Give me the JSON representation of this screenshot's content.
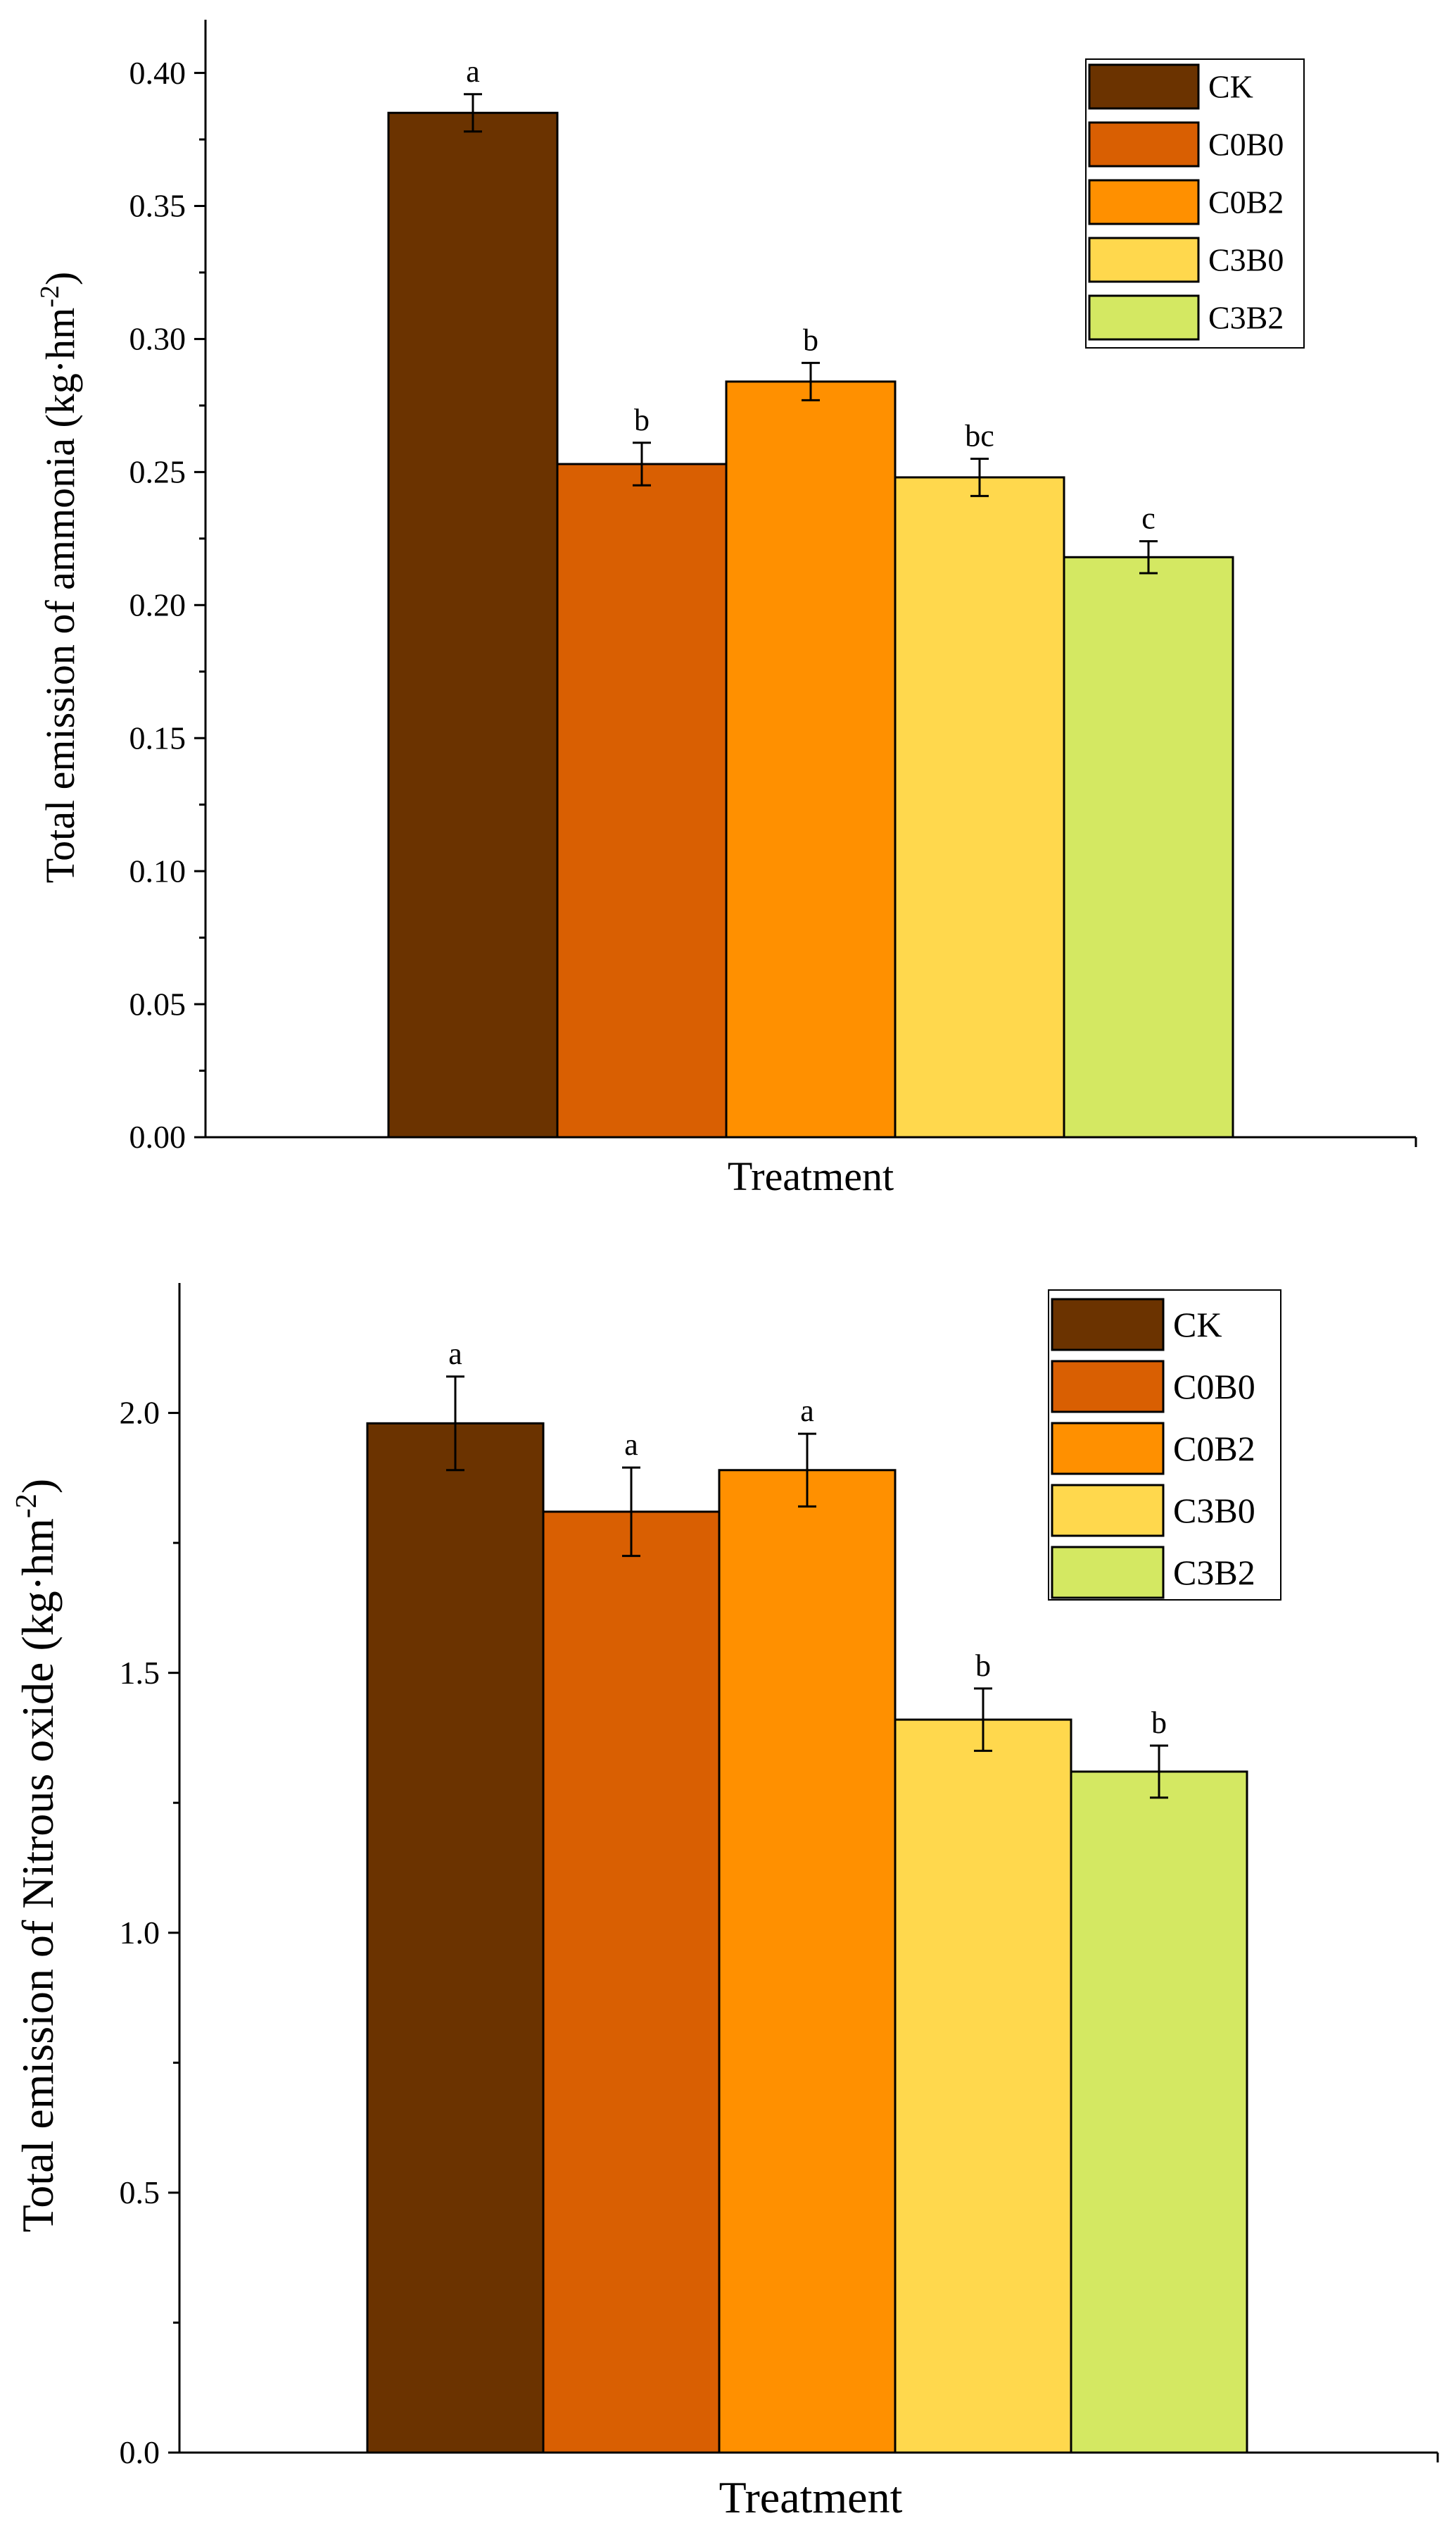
{
  "chart_data": [
    {
      "type": "bar",
      "ylabel": "Total emission of ammonia (kg·hm",
      "ylabel_sup": "-2",
      "ylabel_close": ")",
      "xlabel": "Treatment",
      "ylim": [
        0,
        0.42
      ],
      "yticks": [
        0.0,
        0.05,
        0.1,
        0.15,
        0.2,
        0.25,
        0.3,
        0.35,
        0.4
      ],
      "ytick_labels": [
        "0.00",
        "0.05",
        "0.10",
        "0.15",
        "0.20",
        "0.25",
        "0.30",
        "0.35",
        "0.40"
      ],
      "legend_position": "top-right",
      "series": [
        {
          "name": "CK",
          "value": 0.385,
          "error": 0.007,
          "letter": "a",
          "color": "#6B3300"
        },
        {
          "name": "C0B0",
          "value": 0.253,
          "error": 0.008,
          "letter": "b",
          "color": "#D95F02"
        },
        {
          "name": "C0B2",
          "value": 0.284,
          "error": 0.007,
          "letter": "b",
          "color": "#FF9000"
        },
        {
          "name": "C3B0",
          "value": 0.248,
          "error": 0.007,
          "letter": "bc",
          "color": "#FFD84D"
        },
        {
          "name": "C3B2",
          "value": 0.218,
          "error": 0.006,
          "letter": "c",
          "color": "#D4E862"
        }
      ]
    },
    {
      "type": "bar",
      "ylabel": "Total emission of Nitrous oxide (kg·hm",
      "ylabel_sup": "-2",
      "ylabel_close": ")",
      "xlabel": "Treatment",
      "ylim": [
        0,
        2.25
      ],
      "yticks": [
        0.0,
        0.5,
        1.0,
        1.5,
        2.0
      ],
      "ytick_labels": [
        "0.0",
        "0.5",
        "1.0",
        "1.5",
        "2.0"
      ],
      "legend_position": "top-right",
      "series": [
        {
          "name": "CK",
          "value": 1.98,
          "error": 0.09,
          "letter": "a",
          "color": "#6B3300"
        },
        {
          "name": "C0B0",
          "value": 1.81,
          "error": 0.085,
          "letter": "a",
          "color": "#D95F02"
        },
        {
          "name": "C0B2",
          "value": 1.89,
          "error": 0.07,
          "letter": "a",
          "color": "#FF9000"
        },
        {
          "name": "C3B0",
          "value": 1.41,
          "error": 0.06,
          "letter": "b",
          "color": "#FFD84D"
        },
        {
          "name": "C3B2",
          "value": 1.31,
          "error": 0.05,
          "letter": "b",
          "color": "#D4E862"
        }
      ]
    }
  ]
}
